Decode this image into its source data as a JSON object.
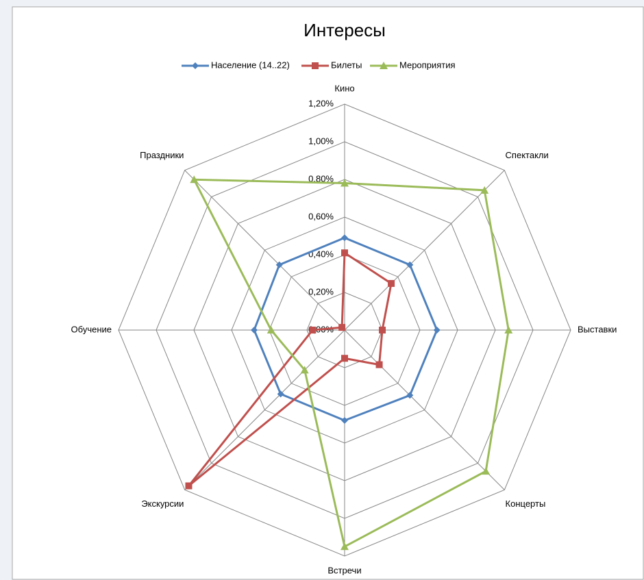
{
  "chart_data": {
    "type": "radar",
    "title": "Интересы",
    "categories": [
      "Кино",
      "Спектакли",
      "Выставки",
      "Концерты",
      "Встречи",
      "Экскурсии",
      "Обучение",
      "Праздники"
    ],
    "series": [
      {
        "name": "Население (14..22)",
        "color": "#4f81bd",
        "marker": "diamond",
        "values": [
          0.49,
          0.49,
          0.49,
          0.49,
          0.48,
          0.48,
          0.48,
          0.49
        ]
      },
      {
        "name": "Билеты",
        "color": "#c0504d",
        "marker": "square",
        "values": [
          0.41,
          0.35,
          0.2,
          0.26,
          0.15,
          1.17,
          0.17,
          0.02
        ]
      },
      {
        "name": "Мероприятия",
        "color": "#9bbb59",
        "marker": "triangle",
        "values": [
          0.78,
          1.05,
          0.87,
          1.06,
          1.15,
          0.3,
          0.39,
          1.13
        ]
      }
    ],
    "ylim": [
      0,
      1.2
    ],
    "yticks": [
      {
        "value": 0,
        "label": "0,00%"
      },
      {
        "value": 0.2,
        "label": "0,20%"
      },
      {
        "value": 0.4,
        "label": "0,40%"
      },
      {
        "value": 0.6,
        "label": "0,60%"
      },
      {
        "value": 0.8,
        "label": "0,80%"
      },
      {
        "value": 1.0,
        "label": "1,00%"
      },
      {
        "value": 1.2,
        "label": "1,20%"
      }
    ],
    "legend": "top",
    "grid": true
  }
}
